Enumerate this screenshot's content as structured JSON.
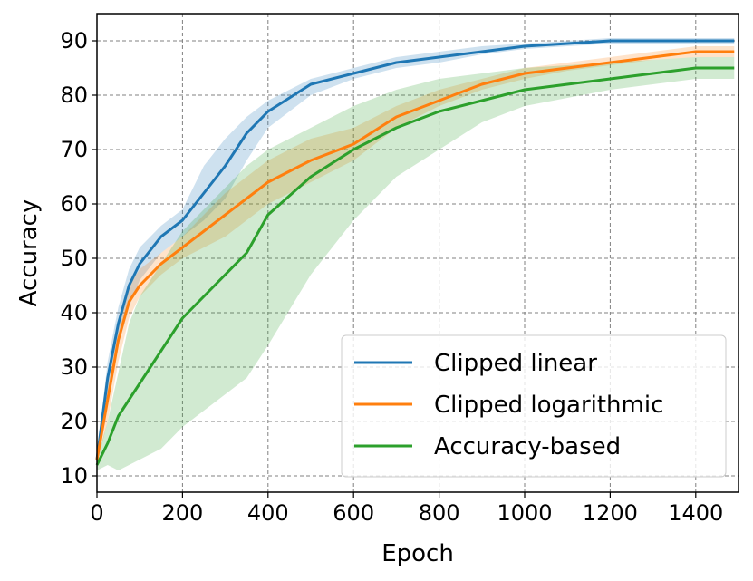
{
  "chart_data": {
    "type": "line",
    "xlabel": "Epoch",
    "ylabel": "Accuracy",
    "xlim": [
      0,
      1500
    ],
    "ylim": [
      7,
      95
    ],
    "xticks": [
      0,
      200,
      400,
      600,
      800,
      1000,
      1200,
      1400
    ],
    "yticks": [
      10,
      20,
      30,
      40,
      50,
      60,
      70,
      80,
      90
    ],
    "grid": true,
    "legend_position": "lower-right",
    "x": [
      0,
      25,
      50,
      75,
      100,
      150,
      200,
      250,
      300,
      350,
      400,
      500,
      600,
      700,
      800,
      900,
      1000,
      1100,
      1200,
      1300,
      1400,
      1490
    ],
    "series": [
      {
        "name": "Clipped linear",
        "color": "#1f77b4",
        "values": [
          13,
          28,
          38,
          45,
          49,
          54,
          57,
          62,
          67,
          73,
          77,
          82,
          84,
          86,
          87,
          88,
          89,
          89.5,
          90,
          90,
          90,
          90
        ],
        "band_low": [
          12,
          24,
          34,
          41,
          46,
          51,
          54,
          57,
          61,
          68,
          74,
          80,
          83,
          85,
          86,
          87.5,
          88.5,
          89,
          89.5,
          89.5,
          89.5,
          89.5
        ],
        "band_high": [
          14,
          31,
          41,
          48,
          52,
          56,
          59,
          67,
          72,
          76,
          79,
          83,
          85,
          87,
          88,
          89,
          89.5,
          90,
          90.5,
          90.5,
          90.5,
          90.5
        ]
      },
      {
        "name": "Clipped logarithmic",
        "color": "#ff7f0e",
        "values": [
          13,
          24,
          35,
          42,
          45,
          49,
          52,
          55,
          58,
          61,
          64,
          68,
          71,
          76,
          79,
          82,
          84,
          85,
          86,
          87,
          88,
          88
        ],
        "band_low": [
          12,
          20,
          31,
          39,
          43,
          47,
          50,
          52,
          54,
          57,
          60,
          64,
          68,
          74,
          78,
          81,
          83,
          84.5,
          85.5,
          86.5,
          87,
          87
        ],
        "band_high": [
          14,
          27,
          38,
          45,
          48,
          51,
          54,
          58,
          62,
          65,
          68,
          72,
          74,
          78,
          81,
          83,
          85,
          86,
          87,
          88,
          89,
          89
        ]
      },
      {
        "name": "Accuracy-based",
        "color": "#2ca02c",
        "values": [
          12,
          16,
          21,
          24,
          27,
          33,
          39,
          43,
          47,
          51,
          58,
          65,
          70,
          74,
          77,
          79,
          81,
          82,
          83,
          84,
          85,
          85
        ],
        "band_low": [
          11,
          12,
          11,
          12,
          13,
          15,
          19,
          22,
          25,
          28,
          34,
          47,
          57,
          65,
          70,
          75,
          78,
          79.5,
          81,
          82,
          83,
          83
        ],
        "band_high": [
          13,
          20,
          29,
          38,
          43,
          49,
          55,
          59,
          63,
          67,
          70,
          74,
          78,
          81,
          83,
          84,
          85,
          85.5,
          86,
          86.5,
          87,
          87
        ]
      }
    ]
  }
}
